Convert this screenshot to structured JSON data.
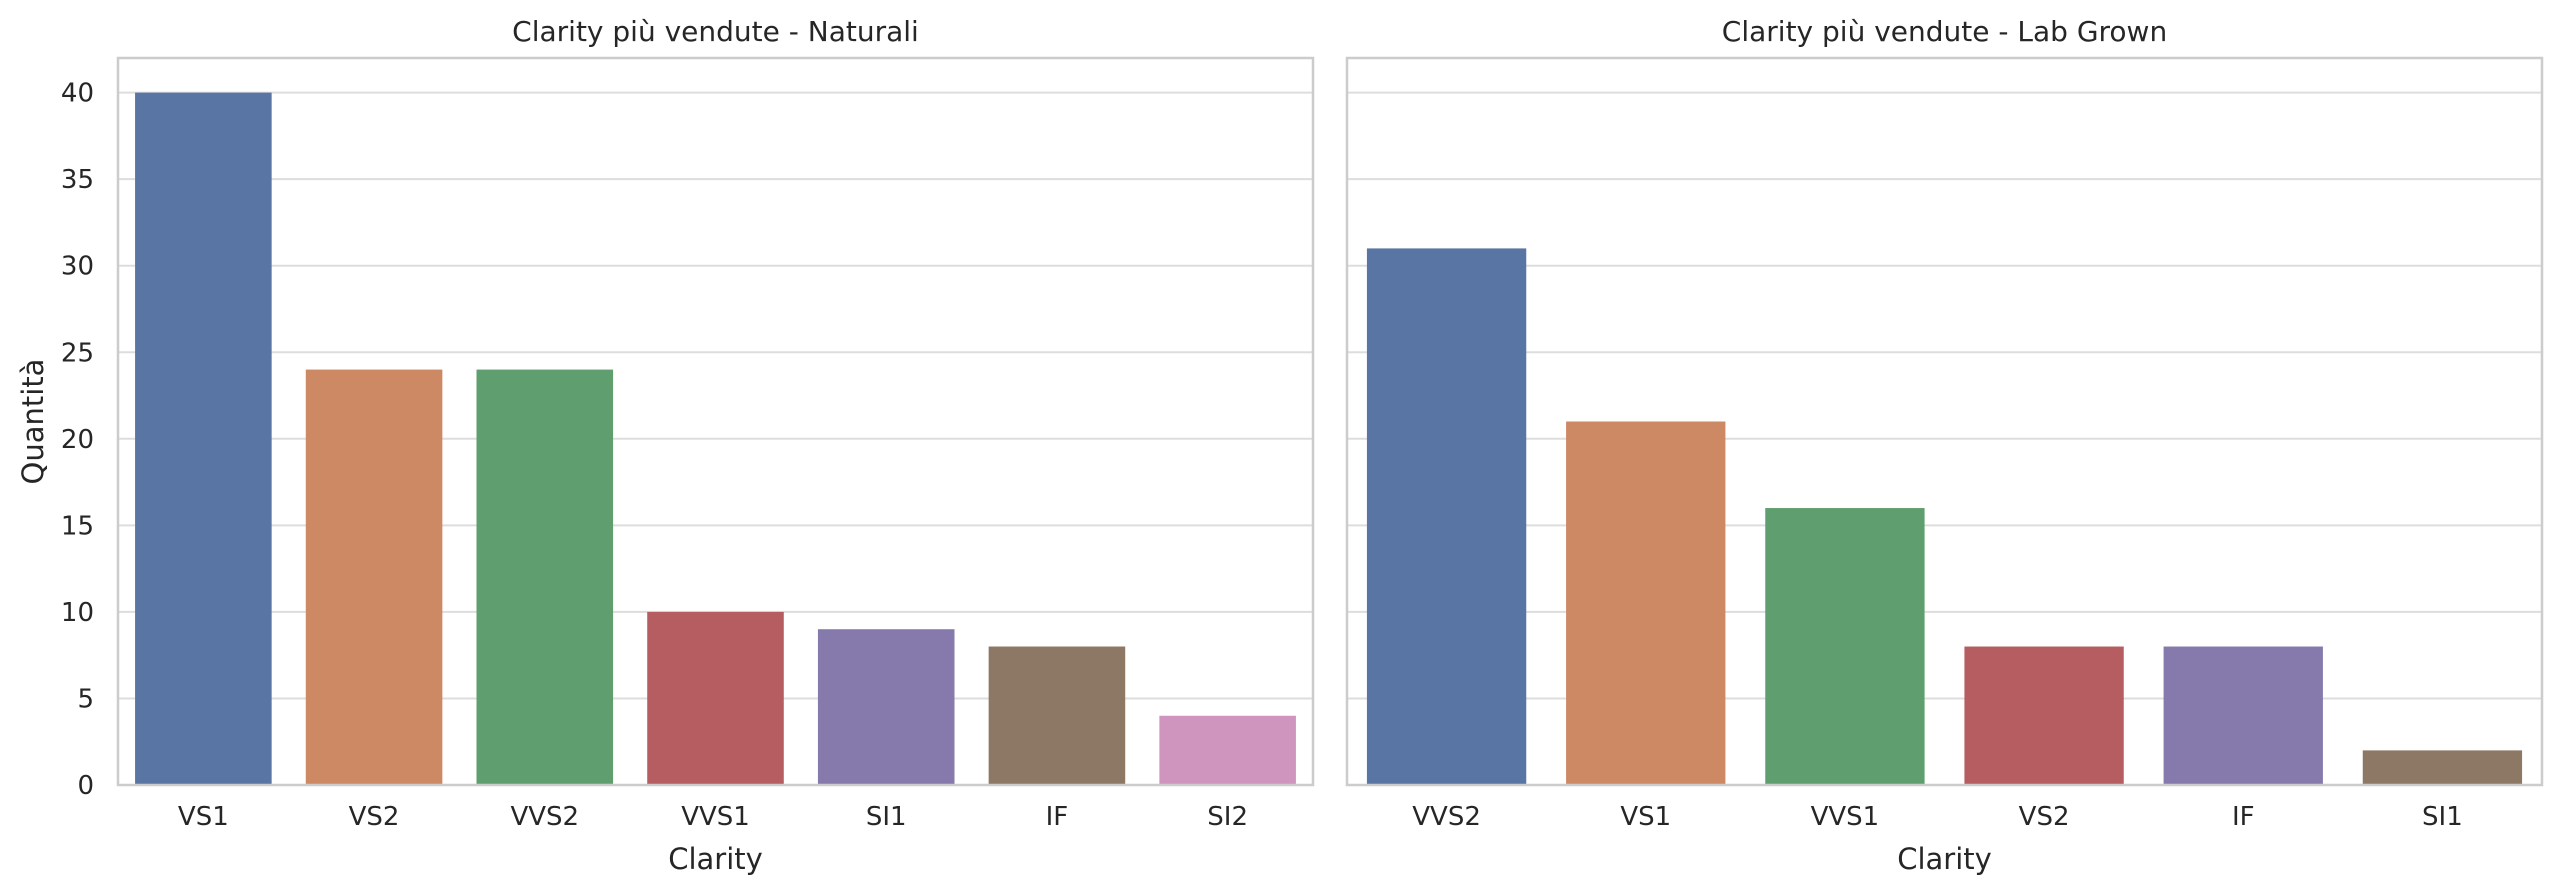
{
  "chart_data": [
    {
      "type": "bar",
      "title": "Clarity più vendute - Naturali",
      "xlabel": "Clarity",
      "ylabel": "Quantità",
      "categories": [
        "VS1",
        "VS2",
        "VVS2",
        "VVS1",
        "SI1",
        "IF",
        "SI2"
      ],
      "values": [
        40,
        24,
        24,
        10,
        9,
        8,
        4
      ],
      "colors": [
        "#5975a4",
        "#cc8963",
        "#5f9e6e",
        "#b55d60",
        "#857aab",
        "#8d7866",
        "#d095bf"
      ],
      "ylim": [
        0,
        42
      ],
      "yticks": [
        0,
        5,
        10,
        15,
        20,
        25,
        30,
        35,
        40
      ],
      "grid": true
    },
    {
      "type": "bar",
      "title": "Clarity più vendute - Lab Grown",
      "xlabel": "Clarity",
      "ylabel": "",
      "categories": [
        "VVS2",
        "VS1",
        "VVS1",
        "VS2",
        "IF",
        "SI1"
      ],
      "values": [
        31,
        21,
        16,
        8,
        8,
        2
      ],
      "colors": [
        "#5975a4",
        "#cc8963",
        "#5f9e6e",
        "#b55d60",
        "#857aab",
        "#8d7866"
      ],
      "ylim": [
        0,
        42
      ],
      "yticks": [],
      "grid": true
    }
  ]
}
